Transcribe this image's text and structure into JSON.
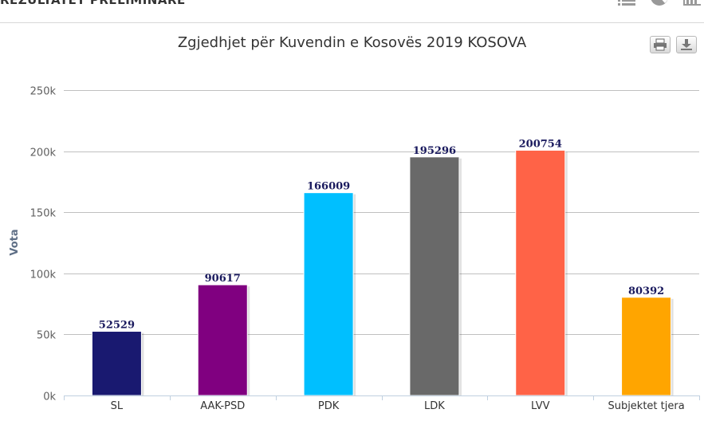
{
  "header": {
    "title": "REZULTATET PRELIMINARE",
    "icons": [
      "list-icon",
      "pie-chart-icon",
      "bar-chart-icon"
    ]
  },
  "toolbar": {
    "icons": [
      "print-icon",
      "download-icon"
    ]
  },
  "colors": {
    "SL": "#191970",
    "AAK-PSD": "#800080",
    "PDK": "#00bfff",
    "LDK": "#696969",
    "LVV": "#ff6347",
    "Subjektet tjera": "#ffa500"
  },
  "chart_data": {
    "type": "bar",
    "title": "Zgjedhjet për Kuvendin e Kosovës 2019 KOSOVA",
    "xlabel": "",
    "ylabel": "Vota",
    "categories": [
      "SL",
      "AAK-PSD",
      "PDK",
      "LDK",
      "LVV",
      "Subjektet tjera"
    ],
    "values": [
      52529,
      90617,
      166009,
      195296,
      200754,
      80392
    ],
    "data_labels": [
      "52529",
      "90617",
      "166009",
      "195296",
      "200754",
      "80392"
    ],
    "ylim": [
      0,
      250000
    ],
    "yticks": [
      0,
      50000,
      100000,
      150000,
      200000,
      250000
    ],
    "ytick_labels": [
      "0k",
      "50k",
      "100k",
      "150k",
      "200k",
      "250k"
    ],
    "grid": true,
    "legend": "none"
  }
}
